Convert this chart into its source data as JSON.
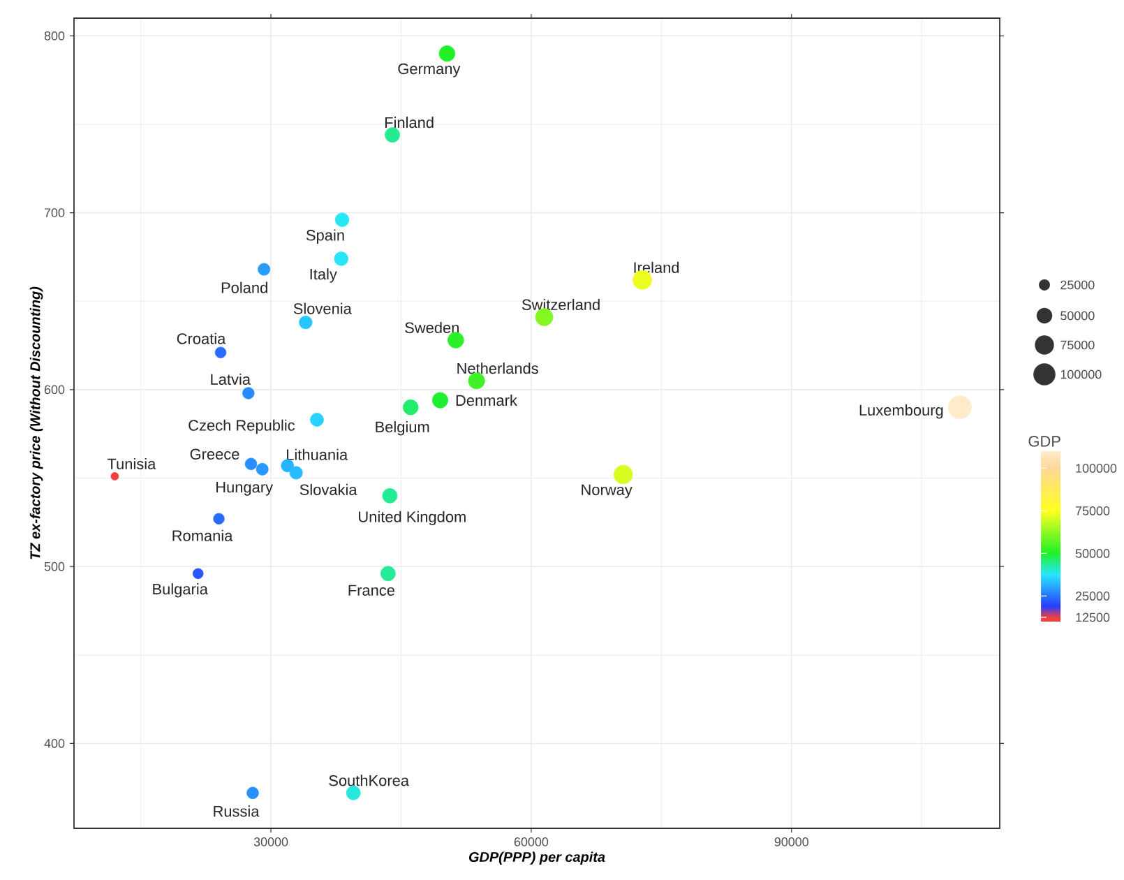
{
  "chart_data": {
    "type": "bubble",
    "xlabel": "GDP(PPP) per capita",
    "ylabel": "TZ ex-factory price (Without Discounting)",
    "clabel": "GDP",
    "x": [
      50300,
      44000,
      38200,
      38100,
      29200,
      34000,
      24200,
      27400,
      35300,
      51300,
      53700,
      49500,
      46100,
      61500,
      72800,
      109400,
      70600,
      12000,
      27700,
      29000,
      31900,
      32900,
      43700,
      24000,
      21600,
      43500,
      27900,
      39500
    ],
    "values": [
      790,
      744,
      696,
      674,
      668,
      638,
      621,
      598,
      583,
      628,
      605,
      594,
      590,
      641,
      662,
      590,
      552,
      551,
      558,
      555,
      557,
      553,
      540,
      527,
      496,
      496,
      372,
      372
    ],
    "sizes": [
      50300,
      44000,
      38200,
      38100,
      29200,
      34000,
      24200,
      27400,
      35300,
      51300,
      53700,
      49500,
      46100,
      61500,
      72800,
      109400,
      70600,
      12000,
      27700,
      29000,
      31900,
      32900,
      43700,
      24000,
      21600,
      43500,
      27900,
      39500
    ],
    "cvalues": [
      50300,
      44000,
      38200,
      38100,
      29200,
      34000,
      24200,
      27400,
      35300,
      51300,
      53700,
      49500,
      46100,
      61500,
      72800,
      109400,
      70600,
      12000,
      27700,
      29000,
      31900,
      32900,
      43700,
      24000,
      21600,
      43500,
      27900,
      39500
    ],
    "size_legend": [
      25000,
      50000,
      75000,
      100000
    ],
    "clim": [
      10000,
      110000
    ],
    "cticks": [
      12500,
      25000,
      50000,
      75000,
      100000
    ],
    "xlim": [
      7300,
      114000
    ],
    "ylim": [
      352,
      810
    ],
    "xticks": [
      30000,
      60000,
      90000
    ],
    "yticks": [
      400,
      500,
      600,
      700,
      800
    ],
    "grid": true,
    "marker": "circle",
    "annotations": [
      {
        "text": "Germany",
        "x": 50300,
        "y": 790
      },
      {
        "text": "Finland",
        "x": 44000,
        "y": 744
      },
      {
        "text": "Spain",
        "x": 38200,
        "y": 696
      },
      {
        "text": "Italy",
        "x": 38100,
        "y": 674
      },
      {
        "text": "Poland",
        "x": 29200,
        "y": 668
      },
      {
        "text": "Slovenia",
        "x": 34000,
        "y": 638
      },
      {
        "text": "Croatia",
        "x": 24200,
        "y": 621
      },
      {
        "text": "Latvia",
        "x": 27400,
        "y": 598
      },
      {
        "text": "Czech Republic",
        "x": 35300,
        "y": 583
      },
      {
        "text": "Sweden",
        "x": 51300,
        "y": 628
      },
      {
        "text": "Netherlands",
        "x": 53700,
        "y": 605
      },
      {
        "text": "Denmark",
        "x": 49500,
        "y": 594
      },
      {
        "text": "Belgium",
        "x": 46100,
        "y": 590
      },
      {
        "text": "Switzerland",
        "x": 61500,
        "y": 641
      },
      {
        "text": "Ireland",
        "x": 72800,
        "y": 662
      },
      {
        "text": "Luxembourg",
        "x": 109400,
        "y": 590
      },
      {
        "text": "Norway",
        "x": 70600,
        "y": 552
      },
      {
        "text": "Tunisia",
        "x": 12000,
        "y": 551
      },
      {
        "text": "Greece",
        "x": 27700,
        "y": 558
      },
      {
        "text": "Hungary",
        "x": 29000,
        "y": 555
      },
      {
        "text": "Lithuania",
        "x": 31900,
        "y": 557
      },
      {
        "text": "Slovakia",
        "x": 32900,
        "y": 553
      },
      {
        "text": "United Kingdom",
        "x": 43700,
        "y": 540
      },
      {
        "text": "Romania",
        "x": 24000,
        "y": 527
      },
      {
        "text": "Bulgaria",
        "x": 21600,
        "y": 496
      },
      {
        "text": "France",
        "x": 43500,
        "y": 496
      },
      {
        "text": "Russia",
        "x": 27900,
        "y": 372
      },
      {
        "text": "SouthKorea",
        "x": 39500,
        "y": 372
      }
    ]
  }
}
